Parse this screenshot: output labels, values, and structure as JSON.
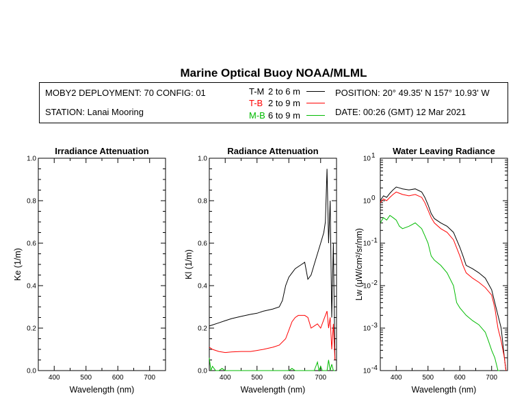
{
  "header": {
    "title": "Marine Optical Buoy NOAA/MLML",
    "deployment": "MOBY2 DEPLOYMENT: 70 CONFIG: 01",
    "station": "STATION: Lanai Mooring",
    "position": "POSITION: 20° 49.35' N   157° 10.93' W",
    "date": "DATE: 00:26 (GMT) 12 Mar 2021",
    "legend": [
      {
        "code": "T-M",
        "range": "2 to 6  m",
        "color": "#000000"
      },
      {
        "code": "T-B",
        "range": "2 to 9  m",
        "color": "#ff0000"
      },
      {
        "code": "M-B",
        "range": "6 to 9  m",
        "color": "#00bb00"
      }
    ]
  },
  "chart_data": [
    {
      "type": "line",
      "title": "Irradiance Attenuation",
      "xlabel": "Wavelength (nm)",
      "ylabel": "Ke  (1/m)",
      "xlim": [
        350,
        750
      ],
      "ylim": [
        0,
        1.0
      ],
      "xticks": [
        "400",
        "500",
        "600",
        "700"
      ],
      "yticks": [
        "0.0",
        "0.2",
        "0.4",
        "0.6",
        "0.8",
        "1.0"
      ],
      "series": []
    },
    {
      "type": "line",
      "title": "Radiance Attenuation",
      "xlabel": "Wavelength (nm)",
      "ylabel": "Kl  (1/m)",
      "xlim": [
        350,
        750
      ],
      "ylim": [
        0,
        1.0
      ],
      "xticks": [
        "400",
        "500",
        "600",
        "700"
      ],
      "yticks": [
        "0.0",
        "0.2",
        "0.4",
        "0.6",
        "0.8",
        "1.0"
      ],
      "series": [
        {
          "name": "T-M",
          "color": "#000000",
          "x": [
            350,
            360,
            380,
            400,
            420,
            450,
            480,
            500,
            520,
            550,
            570,
            580,
            590,
            600,
            610,
            620,
            640,
            650,
            660,
            670,
            680,
            690,
            700,
            710,
            715,
            720,
            725,
            730,
            735,
            740,
            745
          ],
          "y": [
            0.21,
            0.215,
            0.225,
            0.235,
            0.245,
            0.255,
            0.265,
            0.27,
            0.28,
            0.29,
            0.3,
            0.33,
            0.4,
            0.44,
            0.46,
            0.48,
            0.5,
            0.51,
            0.43,
            0.45,
            0.5,
            0.55,
            0.6,
            0.65,
            0.7,
            0.95,
            0.6,
            0.8,
            0.25,
            0.6,
            0.05
          ]
        },
        {
          "name": "T-B",
          "color": "#ff0000",
          "x": [
            350,
            360,
            380,
            400,
            420,
            450,
            480,
            500,
            520,
            550,
            570,
            590,
            600,
            610,
            620,
            630,
            650,
            660,
            670,
            680,
            690,
            700,
            710,
            720,
            725,
            730,
            735,
            740,
            745
          ],
          "y": [
            0.11,
            0.1,
            0.09,
            0.085,
            0.088,
            0.09,
            0.09,
            0.095,
            0.1,
            0.11,
            0.12,
            0.15,
            0.19,
            0.23,
            0.25,
            0.26,
            0.26,
            0.25,
            0.2,
            0.21,
            0.22,
            0.2,
            0.24,
            0.28,
            0.2,
            0.25,
            0.1,
            0.22,
            0.05
          ]
        },
        {
          "name": "M-B",
          "color": "#00bb00",
          "x": [
            350,
            355,
            360,
            370,
            380,
            390,
            400,
            600,
            610,
            620,
            650,
            680,
            690,
            695,
            700,
            705,
            710,
            720,
            725,
            730,
            735,
            740,
            745
          ],
          "y": [
            0.06,
            0.0,
            0.02,
            0.0,
            0.0,
            0.01,
            0.0,
            0.0,
            0.01,
            0.0,
            0.0,
            0.0,
            0.04,
            0.0,
            0.02,
            0.0,
            0.0,
            0.0,
            0.05,
            0.0,
            0.03,
            0.0,
            0.0
          ]
        }
      ]
    },
    {
      "type": "line",
      "title": "Water Leaving Radiance",
      "xlabel": "Wavelength (nm)",
      "ylabel": "Lw  (μW/cm²/sr/nm)",
      "xlim": [
        350,
        750
      ],
      "ylim": [
        0.0001,
        10
      ],
      "yscale": "log",
      "xticks": [
        "400",
        "500",
        "600",
        "700"
      ],
      "yticks": [
        "10^-4",
        "10^-3",
        "10^-2",
        "10^-1",
        "10^0",
        "10^1"
      ],
      "series": [
        {
          "name": "T-M",
          "color": "#000000",
          "x": [
            350,
            360,
            370,
            380,
            390,
            400,
            410,
            420,
            440,
            460,
            480,
            490,
            500,
            510,
            520,
            540,
            560,
            580,
            600,
            610,
            620,
            640,
            660,
            680,
            700,
            710,
            720,
            730,
            740,
            745
          ],
          "y": [
            1.0,
            1.3,
            1.2,
            1.5,
            1.8,
            2.1,
            2.0,
            1.9,
            1.8,
            1.9,
            1.6,
            1.2,
            0.8,
            0.5,
            0.38,
            0.3,
            0.25,
            0.18,
            0.08,
            0.05,
            0.03,
            0.025,
            0.02,
            0.015,
            0.008,
            0.004,
            0.002,
            0.001,
            0.0002,
            0.0001
          ]
        },
        {
          "name": "T-B",
          "color": "#ff0000",
          "x": [
            350,
            360,
            370,
            380,
            390,
            400,
            410,
            420,
            440,
            460,
            480,
            490,
            500,
            510,
            520,
            540,
            560,
            580,
            600,
            610,
            620,
            640,
            660,
            680,
            700,
            710,
            720,
            730,
            740,
            745
          ],
          "y": [
            0.9,
            1.1,
            1.0,
            1.2,
            1.4,
            1.6,
            1.5,
            1.4,
            1.3,
            1.4,
            1.2,
            0.9,
            0.6,
            0.4,
            0.3,
            0.22,
            0.18,
            0.12,
            0.05,
            0.03,
            0.02,
            0.015,
            0.012,
            0.009,
            0.006,
            0.003,
            0.001,
            0.0005,
            0.0002,
            0.0001
          ]
        },
        {
          "name": "M-B",
          "color": "#00bb00",
          "x": [
            350,
            360,
            370,
            380,
            390,
            400,
            410,
            420,
            440,
            460,
            480,
            490,
            500,
            510,
            520,
            540,
            560,
            580,
            590,
            600,
            620,
            640,
            660,
            680,
            690,
            700,
            710,
            720,
            725
          ],
          "y": [
            0.3,
            0.4,
            0.35,
            0.45,
            0.4,
            0.35,
            0.25,
            0.22,
            0.25,
            0.3,
            0.22,
            0.15,
            0.1,
            0.05,
            0.04,
            0.03,
            0.02,
            0.01,
            0.004,
            0.003,
            0.002,
            0.0015,
            0.0012,
            0.0008,
            0.0005,
            0.0003,
            0.0002,
            0.0001,
            0.0001
          ]
        }
      ]
    }
  ]
}
